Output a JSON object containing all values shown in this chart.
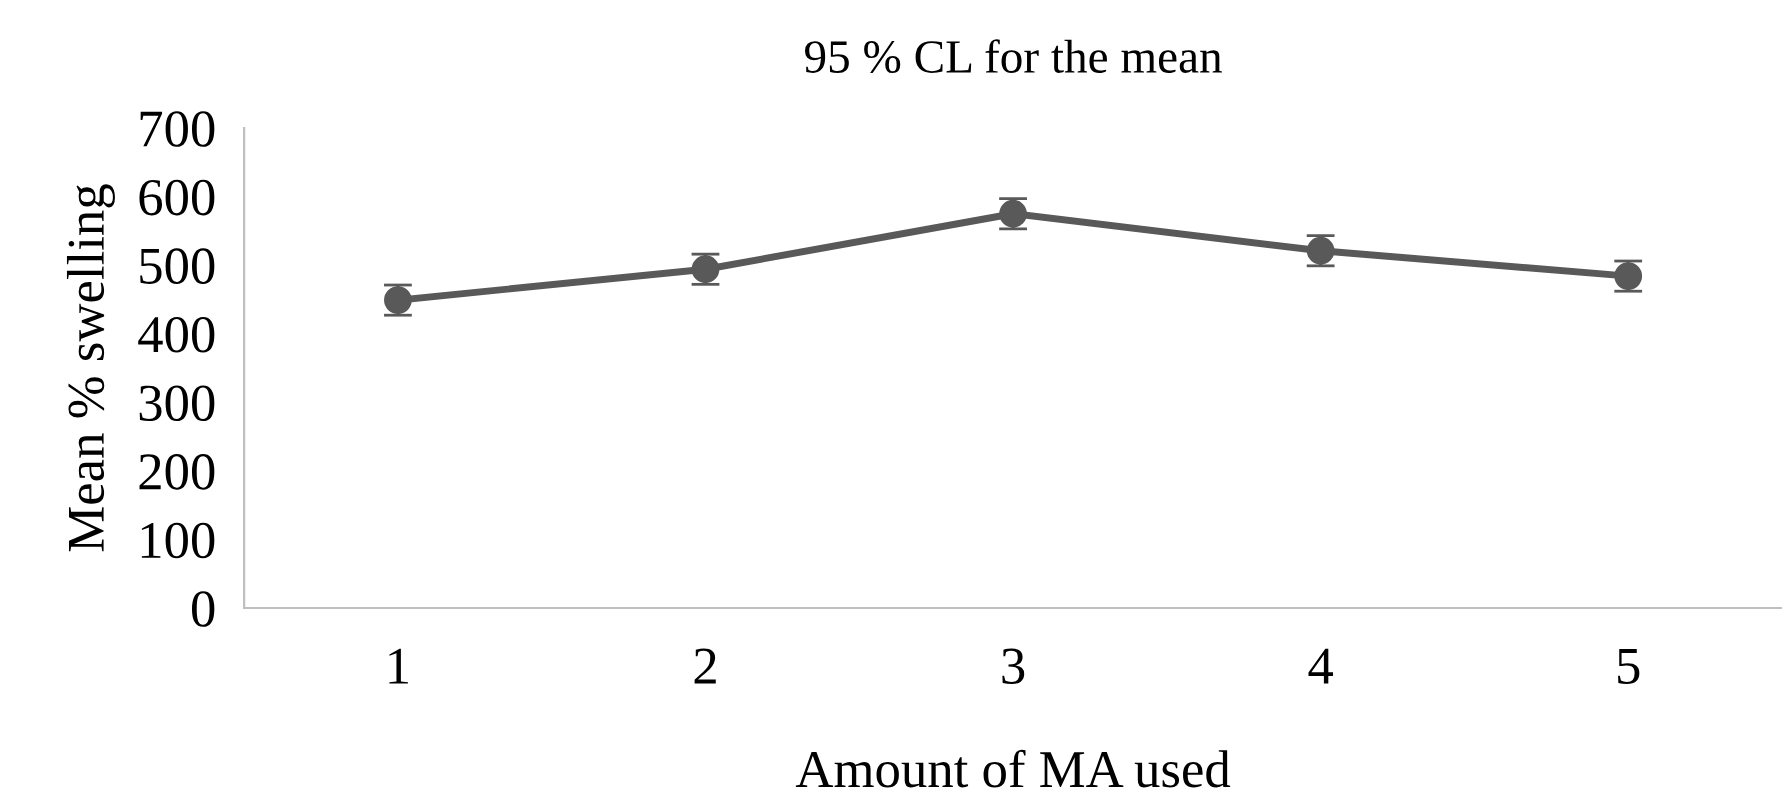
{
  "chart_data": {
    "type": "line",
    "title": "95 % CL for the mean",
    "xlabel": "Amount of MA used",
    "ylabel": "Mean % swelling",
    "categories": [
      "1",
      "2",
      "3",
      "4",
      "5"
    ],
    "series": [
      {
        "color": "#595959",
        "values": [
          449,
          494,
          575,
          521,
          484
        ],
        "errors": [
          22,
          22,
          22,
          22,
          22
        ]
      }
    ],
    "ylim": [
      0,
      700
    ],
    "yticks": [
      0,
      100,
      200,
      300,
      400,
      500,
      600,
      700
    ],
    "marker": "circle",
    "line_style": "solid",
    "grid": false,
    "legend": false
  }
}
